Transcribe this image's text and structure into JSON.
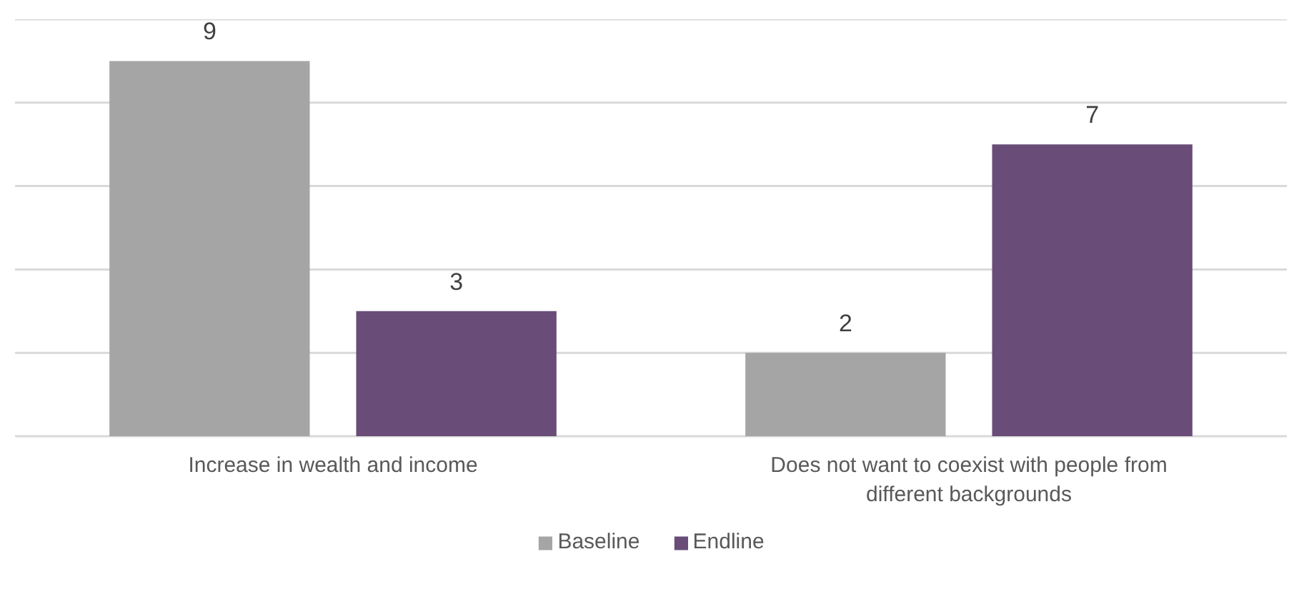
{
  "chart_data": {
    "type": "bar",
    "categories": [
      "Increase in wealth and income",
      "Does not want to coexist with people from different backgrounds"
    ],
    "series": [
      {
        "name": "Baseline",
        "color": "#a5a5a5",
        "values": [
          9,
          2
        ]
      },
      {
        "name": "Endline",
        "color": "#694d78",
        "values": [
          3,
          7
        ]
      }
    ],
    "ylim": [
      0,
      10
    ],
    "yticks": [
      {
        "value": 0,
        "label": null
      },
      {
        "value": 2,
        "label": null
      },
      {
        "value": 4,
        "label": null
      },
      {
        "value": 6,
        "label": null
      },
      {
        "value": 8,
        "label": null
      },
      {
        "value": 10,
        "label": null
      }
    ],
    "tick_labels": "x",
    "grid": "y",
    "legend": "bottom",
    "data_labels": true
  }
}
